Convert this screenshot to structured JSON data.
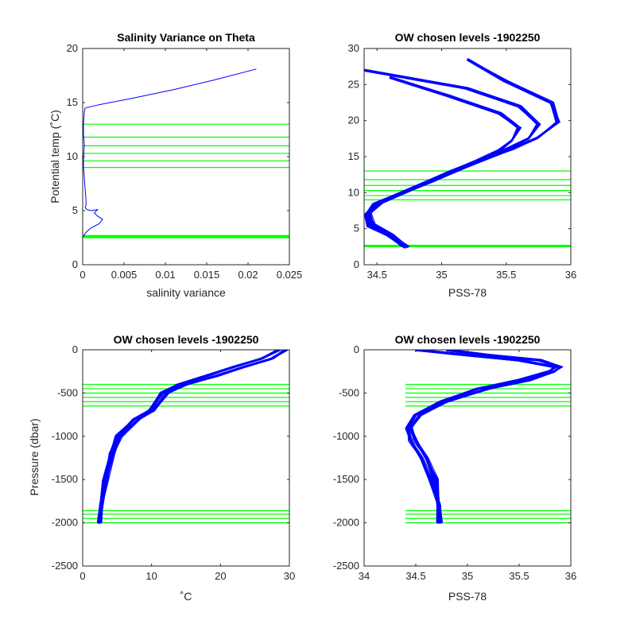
{
  "colors": {
    "profile": "#0000ff",
    "level": "#00ff00",
    "axis": "#262626"
  },
  "chart_data": [
    {
      "type": "line",
      "title": "Salinity Variance on Theta",
      "xlabel": "salinity variance",
      "ylabel": "Potential temp (˚C)",
      "xlim": [
        0,
        0.025
      ],
      "ylim": [
        0,
        20
      ],
      "xticks": [
        "0",
        "0.005",
        "0.01",
        "0.015",
        "0.02",
        "0.025"
      ],
      "yticks": [
        "0",
        "5",
        "10",
        "15",
        "20"
      ],
      "series": [
        {
          "x": [
            0.0003,
            0.0002,
            0.0001,
            0.0001,
            0.0002,
            0.0001,
            0.0001,
            0.0002,
            0.0003,
            0.0004,
            0.0004,
            0.0003,
            0.0005,
            0.001,
            0.0018,
            0.0014,
            0.0018,
            0.0024,
            0.002,
            0.001,
            0.0004,
            0.0002,
            0.0001
          ],
          "y": [
            14.5,
            14.2,
            13.0,
            12.0,
            11.0,
            10.0,
            9.0,
            8.0,
            7.0,
            6.0,
            5.5,
            5.3,
            5.1,
            5.0,
            5.1,
            4.8,
            4.5,
            4.2,
            3.8,
            3.4,
            3.0,
            2.8,
            2.6
          ]
        },
        {
          "x": [
            0.0003,
            0.002,
            0.006,
            0.011,
            0.016,
            0.021
          ],
          "y": [
            14.5,
            14.8,
            15.4,
            16.2,
            17.1,
            18.1
          ]
        }
      ],
      "levels": [
        2.5,
        2.55,
        2.6,
        2.65,
        2.7,
        9.0,
        9.6,
        10.3,
        11.0,
        11.8,
        13.0
      ],
      "level_range": [
        0,
        0.025
      ]
    },
    {
      "type": "line",
      "title": "OW chosen levels -1902250",
      "xlabel": "PSS-78",
      "ylabel": "",
      "xlim": [
        34.4,
        36
      ],
      "ylim": [
        0,
        30
      ],
      "xticks": [
        "34.5",
        "35",
        "35.5",
        "36"
      ],
      "yticks": [
        "0",
        "5",
        "10",
        "15",
        "20",
        "25",
        "30"
      ],
      "series": [
        {
          "x": [
            34.72,
            34.6,
            34.45,
            34.42,
            34.5,
            34.7,
            34.9,
            35.1,
            35.3,
            35.5,
            35.68,
            35.75,
            35.6,
            35.2,
            34.4
          ],
          "y": [
            2.4,
            4.0,
            5.5,
            7.0,
            8.5,
            10.0,
            11.5,
            13.0,
            14.5,
            16.0,
            17.5,
            19.5,
            22.0,
            24.5,
            27.0
          ]
        },
        {
          "x": [
            34.74,
            34.62,
            34.47,
            34.44,
            34.53,
            34.73,
            34.93,
            35.13,
            35.33,
            35.55,
            35.75,
            35.9,
            35.85,
            35.5,
            35.2
          ],
          "y": [
            2.5,
            4.1,
            5.6,
            7.1,
            8.6,
            10.1,
            11.6,
            13.1,
            14.6,
            16.1,
            17.6,
            19.8,
            22.5,
            25.5,
            28.5
          ]
        },
        {
          "x": [
            34.7,
            34.58,
            34.44,
            34.41,
            34.48,
            34.67,
            34.87,
            35.07,
            35.27,
            35.45,
            35.55,
            35.6,
            35.45,
            35.05,
            34.6
          ],
          "y": [
            2.6,
            4.2,
            5.4,
            6.9,
            8.4,
            9.9,
            11.4,
            12.9,
            14.4,
            15.9,
            17.2,
            19.0,
            21.0,
            23.5,
            26.0
          ]
        }
      ],
      "levels": [
        2.5,
        2.55,
        2.6,
        2.65,
        2.7,
        9.0,
        9.6,
        10.3,
        11.0,
        11.8,
        13.0
      ],
      "level_range": [
        34.4,
        36
      ]
    },
    {
      "type": "line",
      "title": "OW chosen levels -1902250",
      "xlabel": "˚C",
      "ylabel": "Pressure (dbar)",
      "xlim": [
        0,
        30
      ],
      "ylim": [
        -2500,
        0
      ],
      "xticks": [
        "0",
        "10",
        "20",
        "30"
      ],
      "yticks": [
        "-2500",
        "-2000",
        "-1500",
        "-1000",
        "-500",
        "0"
      ],
      "series": [
        {
          "x": [
            2.4,
            2.7,
            3.2,
            4.0,
            5.0,
            7.5,
            9.8,
            11.5,
            14.0,
            18.0,
            22.0,
            26.0,
            28.5
          ],
          "y": [
            -2000,
            -1800,
            -1500,
            -1200,
            -1000,
            -800,
            -700,
            -500,
            -400,
            -300,
            -200,
            -100,
            0
          ]
        },
        {
          "x": [
            2.5,
            2.8,
            3.5,
            4.4,
            5.5,
            8.2,
            10.3,
            12.3,
            15.0,
            19.5,
            23.5,
            27.5,
            29.5
          ],
          "y": [
            -2000,
            -1800,
            -1500,
            -1200,
            -1000,
            -800,
            -700,
            -500,
            -400,
            -300,
            -200,
            -100,
            0
          ]
        }
      ],
      "levels": [
        -400,
        -450,
        -500,
        -550,
        -600,
        -650,
        -1860,
        -1900,
        -1950,
        -2000
      ],
      "level_range": [
        0,
        30
      ]
    },
    {
      "type": "line",
      "title": "OW chosen levels -1902250",
      "xlabel": "PSS-78",
      "ylabel": "",
      "xlim": [
        34,
        36
      ],
      "ylim": [
        -2500,
        0
      ],
      "xticks": [
        "34",
        "34.5",
        "35",
        "35.5",
        "36"
      ],
      "yticks": [
        "-2500",
        "-2000",
        "-1500",
        "-1000",
        "-500",
        "0"
      ],
      "series": [
        {
          "x": [
            34.72,
            34.72,
            34.7,
            34.6,
            34.5,
            34.45,
            34.55,
            34.8,
            35.2,
            35.6,
            35.85,
            35.9,
            35.7,
            35.2,
            34.8
          ],
          "y": [
            -2000,
            -1800,
            -1500,
            -1250,
            -1050,
            -900,
            -750,
            -600,
            -450,
            -350,
            -250,
            -200,
            -120,
            -60,
            0
          ]
        },
        {
          "x": [
            34.74,
            34.73,
            34.65,
            34.55,
            34.45,
            34.42,
            34.5,
            34.75,
            35.1,
            35.5,
            35.8,
            35.85,
            35.5,
            35.0,
            34.5
          ],
          "y": [
            -2000,
            -1800,
            -1500,
            -1250,
            -1050,
            -900,
            -750,
            -600,
            -450,
            -350,
            -250,
            -200,
            -120,
            -60,
            0
          ]
        }
      ],
      "levels": [
        -400,
        -450,
        -500,
        -550,
        -600,
        -650,
        -1860,
        -1900,
        -1950,
        -2000
      ],
      "level_range": [
        34.4,
        36
      ]
    }
  ]
}
